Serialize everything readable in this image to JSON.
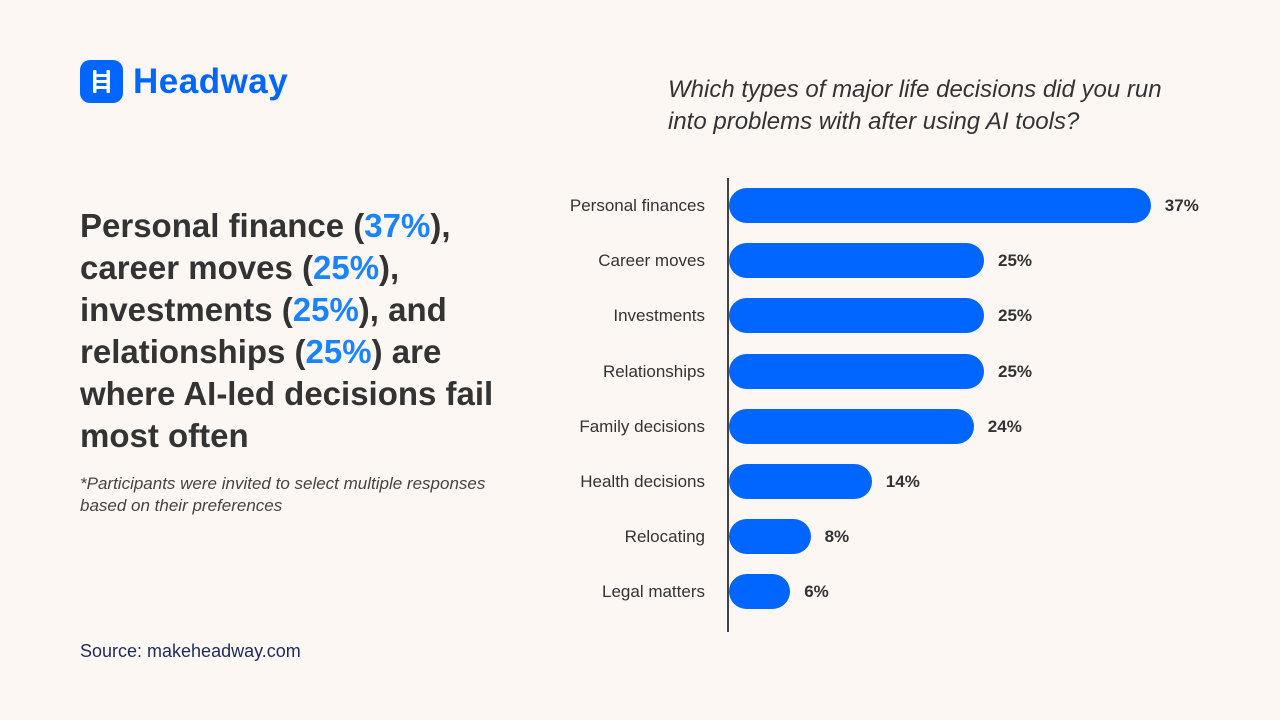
{
  "brand": {
    "name": "Headway",
    "color": "#0066ff"
  },
  "headline": {
    "p1": "Personal finance (",
    "v1": "37%",
    "p2": "), career moves (",
    "v2": "25%",
    "p3": "), investments (",
    "v3": "25%",
    "p4": "), and relationships (",
    "v4": "25%",
    "p5": ") are where AI-led decisions fail most often"
  },
  "footnote": "*Participants were invited to select multiple responses based on their preferences",
  "source": "Source: makeheadway.com",
  "chart_data": {
    "type": "bar",
    "orientation": "horizontal",
    "title": "Which types of major life decisions did you run into problems with after using AI tools?",
    "categories": [
      "Personal finances",
      "Career moves",
      "Investments",
      "Relationships",
      "Family decisions",
      "Health decisions",
      "Relocating",
      "Legal matters"
    ],
    "values": [
      37,
      25,
      25,
      25,
      24,
      14,
      8,
      6
    ],
    "value_labels": [
      "37%",
      "25%",
      "25%",
      "25%",
      "24%",
      "14%",
      "8%",
      "6%"
    ],
    "unit": "%",
    "bar_color": "#0066ff",
    "grid": false
  }
}
